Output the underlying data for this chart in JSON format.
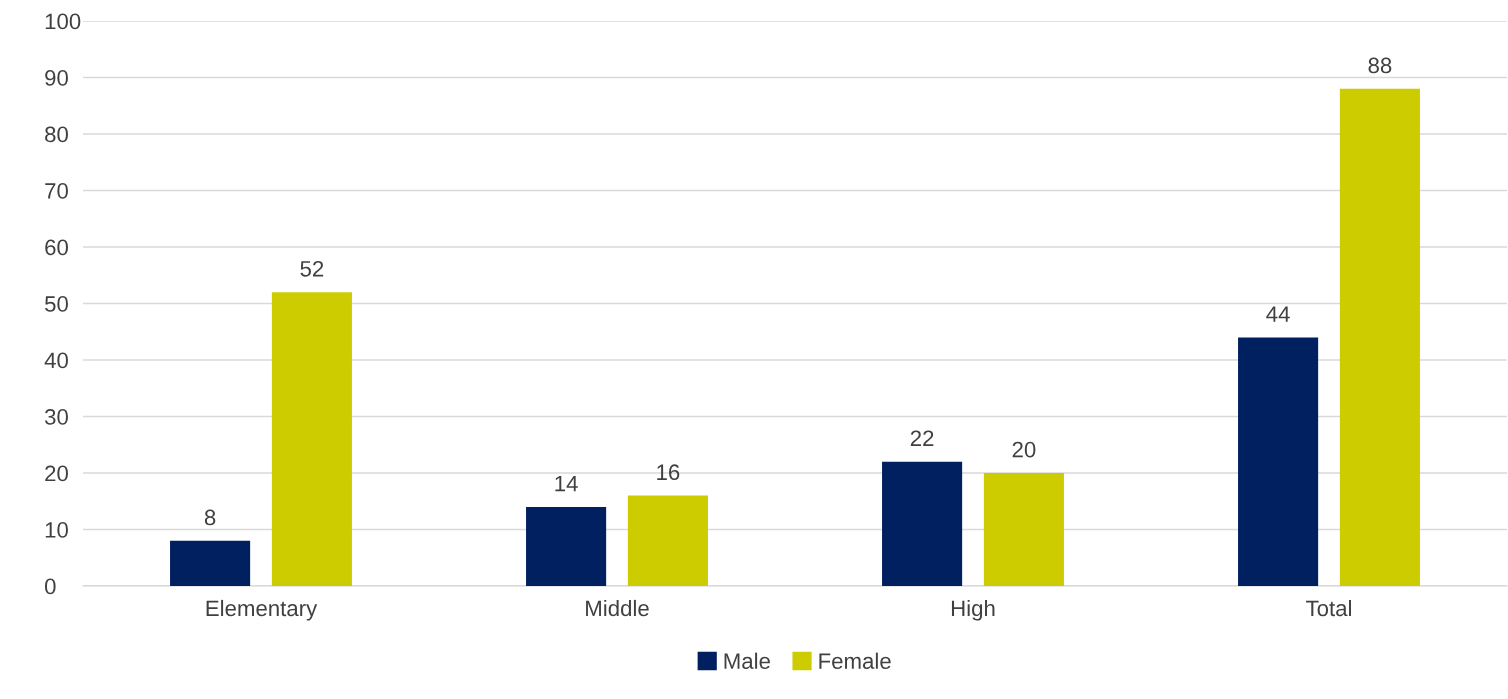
{
  "chart_data": {
    "type": "bar",
    "categories": [
      "Elementary",
      "Middle",
      "High",
      "Total"
    ],
    "series": [
      {
        "name": "Male",
        "color": "#002060",
        "values": [
          8,
          14,
          22,
          44
        ]
      },
      {
        "name": "Female",
        "color": "#cccc00",
        "values": [
          52,
          16,
          20,
          88
        ]
      }
    ],
    "ylim": [
      0,
      100
    ],
    "yticks": [
      0,
      10,
      20,
      30,
      40,
      50,
      60,
      70,
      80,
      90,
      100
    ],
    "grid": "y",
    "legend": "bottom",
    "data_labels": true
  }
}
